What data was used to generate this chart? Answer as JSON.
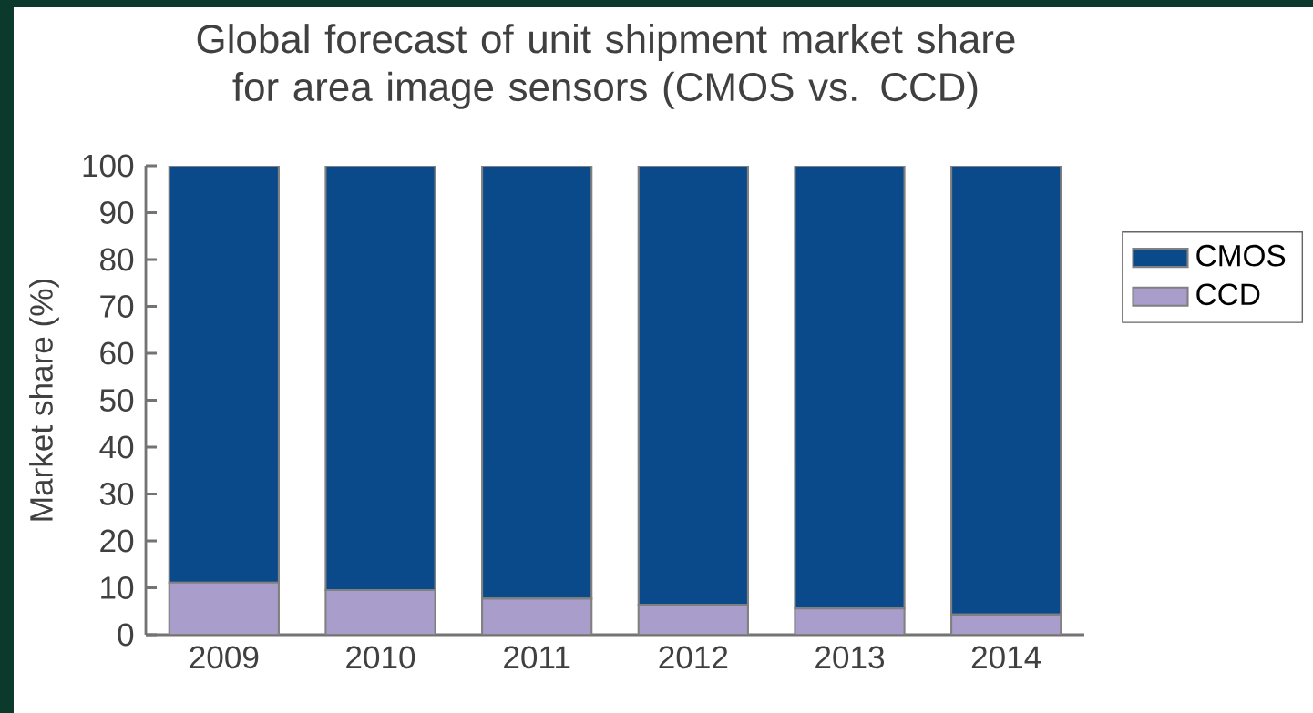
{
  "chart_data": {
    "type": "bar",
    "title": "Global forecast of unit shipment market share for area image sensors (CMOS vs. CCD)",
    "ylabel": "Market share (%)",
    "categories": [
      "2009",
      "2010",
      "2011",
      "2012",
      "2013",
      "2014"
    ],
    "stacked": true,
    "series": [
      {
        "name": "CCD",
        "color": "#a99dcc",
        "values": [
          11.1,
          9.5,
          7.7,
          6.4,
          5.6,
          4.3
        ]
      },
      {
        "name": "CMOS",
        "color": "#0b4a8a",
        "values": [
          88.9,
          90.5,
          92.3,
          93.6,
          94.4,
          95.7
        ]
      }
    ],
    "ylim": [
      0,
      100
    ],
    "yticks": [
      0,
      10,
      20,
      30,
      40,
      50,
      60,
      70,
      80,
      90,
      100
    ],
    "grid": false,
    "legend": "right"
  }
}
